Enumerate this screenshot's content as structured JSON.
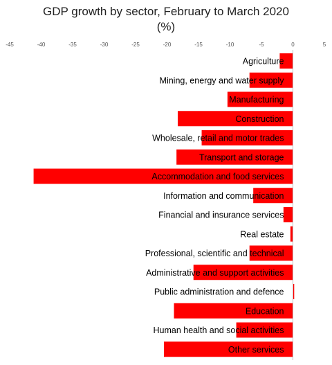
{
  "chart_data": {
    "type": "bar",
    "orientation": "horizontal",
    "title_lines": [
      "GDP growth by sector, February to March 2020",
      "(%)"
    ],
    "xlim": [
      -45,
      5
    ],
    "x_ticks": [
      -45,
      -40,
      -35,
      -30,
      -25,
      -20,
      -15,
      -10,
      -5,
      0,
      5
    ],
    "grid": false,
    "legend": "none",
    "categories": [
      "Agriculture",
      "Mining, energy and water supply",
      "Manufacturing",
      "Construction",
      "Wholesale, retail and motor trades",
      "Transport and storage",
      "Accommodation and food services",
      "Information and communication",
      "Financial and insurance services",
      "Real estate",
      "Professional, scientific and technical",
      "Administrative and support activities",
      "Public administration and defence",
      "Education",
      "Human health and social activities",
      "Other services"
    ],
    "values": [
      -2.1,
      -6.9,
      -10.4,
      -18.3,
      -14.5,
      -18.5,
      -41.2,
      -6.3,
      -1.5,
      -0.4,
      -6.9,
      -15.8,
      0.2,
      -18.9,
      -9.0,
      -20.5
    ],
    "bar_color": "#ff0000",
    "label_color": "#000000"
  }
}
